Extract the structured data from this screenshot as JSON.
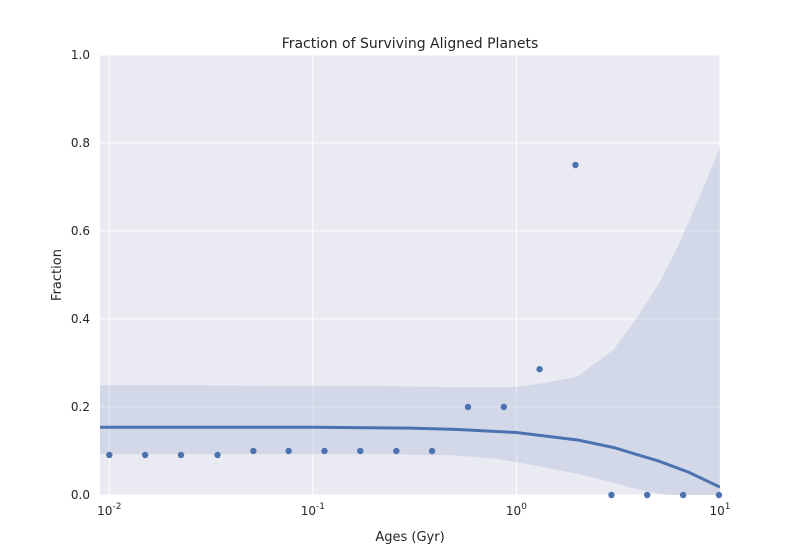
{
  "chart_data": {
    "type": "scatter",
    "title": "Fraction of Surviving Aligned Planets",
    "xlabel": "Ages (Gyr)",
    "ylabel": "Fraction",
    "x_scale": "log",
    "xlim": [
      0.009,
      10
    ],
    "ylim": [
      0,
      1.0
    ],
    "grid": true,
    "y_ticks": [
      "0.0",
      "0.2",
      "0.4",
      "0.6",
      "0.8",
      "1.0"
    ],
    "x_ticks": [
      {
        "value": 0.01,
        "base": "10",
        "exp": "-2"
      },
      {
        "value": 0.1,
        "base": "10",
        "exp": "-1"
      },
      {
        "value": 1,
        "base": "10",
        "exp": "0"
      },
      {
        "value": 10,
        "base": "10",
        "exp": "1"
      }
    ],
    "colors": {
      "background": "#EAEAF2",
      "grid": "#FFFFFF",
      "points": "#4C72B0",
      "band": "#B7C3DE"
    },
    "points": [
      {
        "x": 0.01,
        "y": 0.091
      },
      {
        "x": 0.015,
        "y": 0.091
      },
      {
        "x": 0.0225,
        "y": 0.091
      },
      {
        "x": 0.034,
        "y": 0.091
      },
      {
        "x": 0.051,
        "y": 0.1
      },
      {
        "x": 0.076,
        "y": 0.1
      },
      {
        "x": 0.114,
        "y": 0.1
      },
      {
        "x": 0.171,
        "y": 0.1
      },
      {
        "x": 0.257,
        "y": 0.1
      },
      {
        "x": 0.385,
        "y": 0.1
      },
      {
        "x": 0.578,
        "y": 0.2
      },
      {
        "x": 0.867,
        "y": 0.2
      },
      {
        "x": 1.3,
        "y": 0.286
      },
      {
        "x": 1.95,
        "y": 0.75
      },
      {
        "x": 2.93,
        "y": 0.0
      },
      {
        "x": 4.39,
        "y": 0.0
      },
      {
        "x": 6.59,
        "y": 0.0
      },
      {
        "x": 9.88,
        "y": 0.0
      }
    ],
    "fit_line": [
      {
        "x": 0.009,
        "y": 0.154
      },
      {
        "x": 0.1,
        "y": 0.154
      },
      {
        "x": 0.3,
        "y": 0.152
      },
      {
        "x": 0.5,
        "y": 0.149
      },
      {
        "x": 1.0,
        "y": 0.142
      },
      {
        "x": 2.0,
        "y": 0.125
      },
      {
        "x": 3.0,
        "y": 0.108
      },
      {
        "x": 5.0,
        "y": 0.077
      },
      {
        "x": 7.0,
        "y": 0.052
      },
      {
        "x": 10.0,
        "y": 0.018
      }
    ],
    "confidence_upper": [
      {
        "x": 0.009,
        "y": 0.25
      },
      {
        "x": 0.2,
        "y": 0.248
      },
      {
        "x": 0.5,
        "y": 0.245
      },
      {
        "x": 0.95,
        "y": 0.245
      },
      {
        "x": 1.4,
        "y": 0.255
      },
      {
        "x": 2.0,
        "y": 0.27
      },
      {
        "x": 3.0,
        "y": 0.33
      },
      {
        "x": 4.0,
        "y": 0.41
      },
      {
        "x": 5.0,
        "y": 0.48
      },
      {
        "x": 6.0,
        "y": 0.55
      },
      {
        "x": 7.0,
        "y": 0.62
      },
      {
        "x": 8.5,
        "y": 0.71
      },
      {
        "x": 10.0,
        "y": 0.79
      }
    ],
    "confidence_lower": [
      {
        "x": 0.009,
        "y": 0.093
      },
      {
        "x": 0.2,
        "y": 0.093
      },
      {
        "x": 0.5,
        "y": 0.09
      },
      {
        "x": 0.8,
        "y": 0.082
      },
      {
        "x": 1.2,
        "y": 0.068
      },
      {
        "x": 2.0,
        "y": 0.048
      },
      {
        "x": 3.0,
        "y": 0.028
      },
      {
        "x": 4.0,
        "y": 0.012
      },
      {
        "x": 5.5,
        "y": 0.0
      },
      {
        "x": 10.0,
        "y": 0.0
      }
    ]
  }
}
